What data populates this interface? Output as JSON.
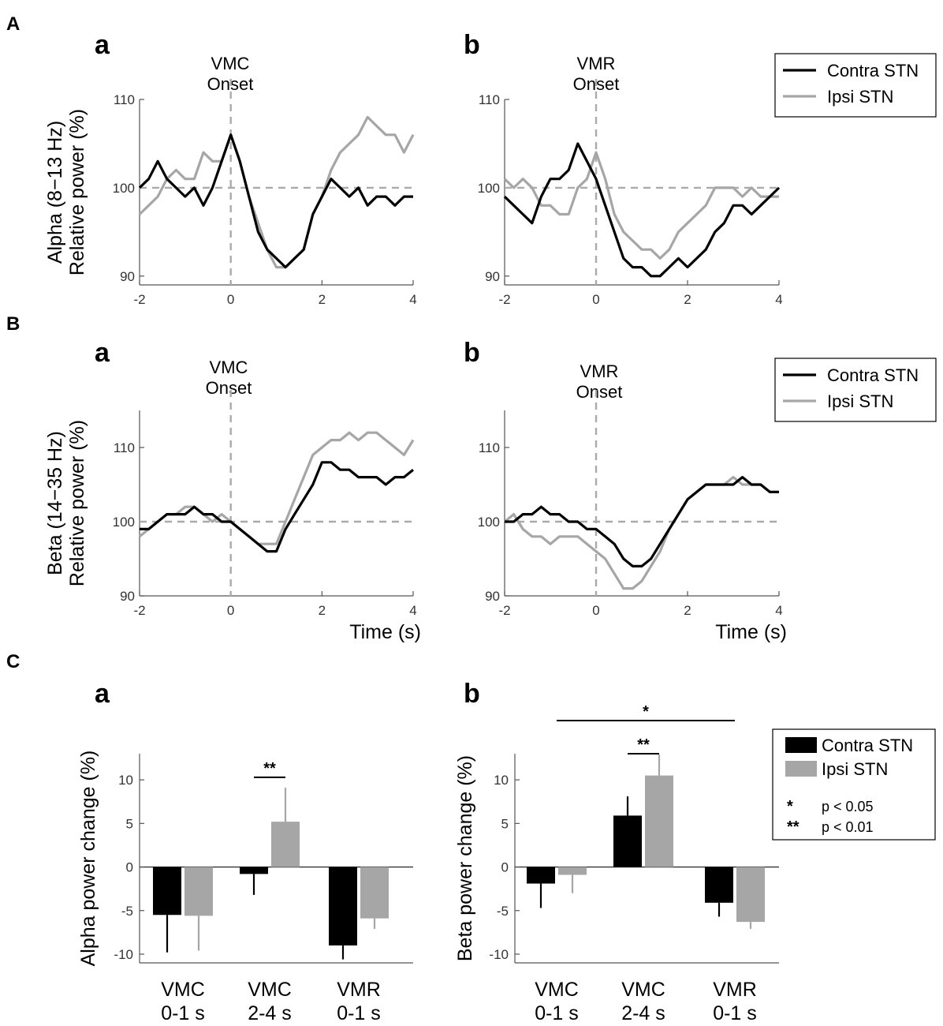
{
  "sections": [
    "A",
    "B",
    "C"
  ],
  "chart_data": [
    {
      "type": "line",
      "id": "A_a",
      "panel_label": "a",
      "annotation": [
        "VMC",
        "Onset"
      ],
      "ylabel": [
        "Alpha (8−13 Hz)",
        "Relative power (%)"
      ],
      "xlabel": "",
      "xlim": [
        -2,
        4
      ],
      "ylim": [
        89,
        110
      ],
      "xticks": [
        -2,
        0,
        2,
        4
      ],
      "yticks": [
        90,
        100,
        110
      ],
      "baseline_y": 100,
      "onset_x": 0,
      "series": [
        {
          "name": "Contra STN",
          "color": "#000000",
          "x": [
            -2,
            -1.8,
            -1.6,
            -1.4,
            -1.2,
            -1,
            -0.8,
            -0.6,
            -0.4,
            -0.2,
            0,
            0.2,
            0.4,
            0.6,
            0.8,
            1,
            1.2,
            1.4,
            1.6,
            1.8,
            2,
            2.2,
            2.4,
            2.6,
            2.8,
            3,
            3.2,
            3.4,
            3.6,
            3.8,
            4
          ],
          "y": [
            100,
            101,
            103,
            101,
            100,
            99,
            100,
            98,
            100,
            103,
            106,
            103,
            99,
            95,
            93,
            92,
            91,
            92,
            93,
            97,
            99,
            101,
            100,
            99,
            100,
            98,
            99,
            99,
            98,
            99,
            99
          ]
        },
        {
          "name": "Ipsi STN",
          "color": "#a6a6a6",
          "x": [
            -2,
            -1.8,
            -1.6,
            -1.4,
            -1.2,
            -1,
            -0.8,
            -0.6,
            -0.4,
            -0.2,
            0,
            0.2,
            0.4,
            0.6,
            0.8,
            1,
            1.2,
            1.4,
            1.6,
            1.8,
            2,
            2.2,
            2.4,
            2.6,
            2.8,
            3,
            3.2,
            3.4,
            3.6,
            3.8,
            4
          ],
          "y": [
            97,
            98,
            99,
            101,
            102,
            101,
            101,
            104,
            103,
            103,
            106,
            103,
            99,
            96,
            93,
            91,
            91,
            92,
            93,
            97,
            99,
            102,
            104,
            105,
            106,
            108,
            107,
            106,
            106,
            104,
            106
          ]
        }
      ]
    },
    {
      "type": "line",
      "id": "A_b",
      "panel_label": "b",
      "annotation": [
        "VMR",
        "Onset"
      ],
      "ylabel": [],
      "xlabel": "",
      "xlim": [
        -2,
        4
      ],
      "ylim": [
        89,
        110
      ],
      "xticks": [
        -2,
        0,
        2,
        4
      ],
      "yticks": [
        90,
        100,
        110
      ],
      "baseline_y": 100,
      "onset_x": 0,
      "series": [
        {
          "name": "Contra STN",
          "color": "#000000",
          "x": [
            -2,
            -1.8,
            -1.6,
            -1.4,
            -1.2,
            -1,
            -0.8,
            -0.6,
            -0.4,
            -0.2,
            0,
            0.2,
            0.4,
            0.6,
            0.8,
            1,
            1.2,
            1.4,
            1.6,
            1.8,
            2,
            2.2,
            2.4,
            2.6,
            2.8,
            3,
            3.2,
            3.4,
            3.6,
            3.8,
            4
          ],
          "y": [
            99,
            98,
            97,
            96,
            99,
            101,
            101,
            102,
            105,
            103,
            101,
            98,
            95,
            92,
            91,
            91,
            90,
            90,
            91,
            92,
            91,
            92,
            93,
            95,
            96,
            98,
            98,
            97,
            98,
            99,
            100
          ]
        },
        {
          "name": "Ipsi STN",
          "color": "#a6a6a6",
          "x": [
            -2,
            -1.8,
            -1.6,
            -1.4,
            -1.2,
            -1,
            -0.8,
            -0.6,
            -0.4,
            -0.2,
            0,
            0.2,
            0.4,
            0.6,
            0.8,
            1,
            1.2,
            1.4,
            1.6,
            1.8,
            2,
            2.2,
            2.4,
            2.6,
            2.8,
            3,
            3.2,
            3.4,
            3.6,
            3.8,
            4
          ],
          "y": [
            101,
            100,
            101,
            100,
            98,
            98,
            97,
            97,
            100,
            101,
            104,
            101,
            97,
            95,
            94,
            93,
            93,
            92,
            93,
            95,
            96,
            97,
            98,
            100,
            100,
            100,
            99,
            100,
            99,
            99,
            99
          ]
        }
      ]
    },
    {
      "type": "line",
      "id": "B_a",
      "panel_label": "a",
      "annotation": [
        "VMC",
        "Onset"
      ],
      "ylabel": [
        "Beta (14−35 Hz)",
        "Relative power (%)"
      ],
      "xlabel": "Time (s)",
      "xlim": [
        -2,
        4
      ],
      "ylim": [
        90,
        115
      ],
      "xticks": [
        -2,
        0,
        2,
        4
      ],
      "yticks": [
        90,
        100,
        110
      ],
      "baseline_y": 100,
      "onset_x": 0,
      "series": [
        {
          "name": "Contra STN",
          "color": "#000000",
          "x": [
            -2,
            -1.8,
            -1.6,
            -1.4,
            -1.2,
            -1,
            -0.8,
            -0.6,
            -0.4,
            -0.2,
            0,
            0.2,
            0.4,
            0.6,
            0.8,
            1,
            1.2,
            1.4,
            1.6,
            1.8,
            2,
            2.2,
            2.4,
            2.6,
            2.8,
            3,
            3.2,
            3.4,
            3.6,
            3.8,
            4
          ],
          "y": [
            99,
            99,
            100,
            101,
            101,
            101,
            102,
            101,
            101,
            100,
            100,
            99,
            98,
            97,
            96,
            96,
            99,
            101,
            103,
            105,
            108,
            108,
            107,
            107,
            106,
            106,
            106,
            105,
            106,
            106,
            107
          ]
        },
        {
          "name": "Ipsi STN",
          "color": "#a6a6a6",
          "x": [
            -2,
            -1.8,
            -1.6,
            -1.4,
            -1.2,
            -1,
            -0.8,
            -0.6,
            -0.4,
            -0.2,
            0,
            0.2,
            0.4,
            0.6,
            0.8,
            1,
            1.2,
            1.4,
            1.6,
            1.8,
            2,
            2.2,
            2.4,
            2.6,
            2.8,
            3,
            3.2,
            3.4,
            3.6,
            3.8,
            4
          ],
          "y": [
            98,
            99,
            100,
            101,
            101,
            102,
            102,
            101,
            100,
            101,
            100,
            99,
            98,
            97,
            97,
            97,
            100,
            103,
            106,
            109,
            110,
            111,
            111,
            112,
            111,
            112,
            112,
            111,
            110,
            109,
            111
          ]
        }
      ]
    },
    {
      "type": "line",
      "id": "B_b",
      "panel_label": "b",
      "annotation": [
        "VMR",
        "Onset"
      ],
      "ylabel": [],
      "xlabel": "Time (s)",
      "xlim": [
        -2,
        4
      ],
      "ylim": [
        90,
        115
      ],
      "xticks": [
        -2,
        0,
        2,
        4
      ],
      "yticks": [
        90,
        100,
        110
      ],
      "baseline_y": 100,
      "onset_x": 0,
      "series": [
        {
          "name": "Contra STN",
          "color": "#000000",
          "x": [
            -2,
            -1.8,
            -1.6,
            -1.4,
            -1.2,
            -1,
            -0.8,
            -0.6,
            -0.4,
            -0.2,
            0,
            0.2,
            0.4,
            0.6,
            0.8,
            1,
            1.2,
            1.4,
            1.6,
            1.8,
            2,
            2.2,
            2.4,
            2.6,
            2.8,
            3,
            3.2,
            3.4,
            3.6,
            3.8,
            4
          ],
          "y": [
            100,
            100,
            101,
            101,
            102,
            101,
            101,
            100,
            100,
            99,
            99,
            98,
            97,
            95,
            94,
            94,
            95,
            97,
            99,
            101,
            103,
            104,
            105,
            105,
            105,
            105,
            106,
            105,
            105,
            104,
            104
          ]
        },
        {
          "name": "Ipsi STN",
          "color": "#a6a6a6",
          "x": [
            -2,
            -1.8,
            -1.6,
            -1.4,
            -1.2,
            -1,
            -0.8,
            -0.6,
            -0.4,
            -0.2,
            0,
            0.2,
            0.4,
            0.6,
            0.8,
            1,
            1.2,
            1.4,
            1.6,
            1.8,
            2,
            2.2,
            2.4,
            2.6,
            2.8,
            3,
            3.2,
            3.4,
            3.6,
            3.8,
            4
          ],
          "y": [
            100,
            101,
            99,
            98,
            98,
            97,
            98,
            98,
            98,
            97,
            96,
            95,
            93,
            91,
            91,
            92,
            94,
            96,
            99,
            101,
            103,
            104,
            105,
            105,
            105,
            106,
            105,
            105,
            105,
            104,
            104
          ]
        }
      ]
    },
    {
      "type": "bar",
      "id": "C_a",
      "panel_label": "a",
      "ylabel": "Alpha power change (%)",
      "categories": [
        [
          "VMC",
          "0-1 s"
        ],
        [
          "VMC",
          "2-4 s"
        ],
        [
          "VMR",
          "0-1 s"
        ]
      ],
      "ylim": [
        -11,
        13
      ],
      "yticks": [
        -10,
        -5,
        0,
        5,
        10
      ],
      "series": [
        {
          "name": "Contra STN",
          "color": "#000000",
          "values": [
            -5.5,
            -0.8,
            -9.0
          ],
          "errors": [
            4.3,
            2.4,
            1.6
          ]
        },
        {
          "name": "Ipsi STN",
          "color": "#a6a6a6",
          "values": [
            -5.6,
            5.2,
            -5.9
          ],
          "errors": [
            4.0,
            3.9,
            1.2
          ]
        }
      ],
      "significance": [
        {
          "label": "**",
          "between": "Contra STN vs Ipsi STN",
          "category": 1,
          "y": 10.3
        }
      ]
    },
    {
      "type": "bar",
      "id": "C_b",
      "panel_label": "b",
      "ylabel": "Beta power change (%)",
      "categories": [
        [
          "VMC",
          "0-1 s"
        ],
        [
          "VMC",
          "2-4 s"
        ],
        [
          "VMR",
          "0-1 s"
        ]
      ],
      "ylim": [
        -11,
        13
      ],
      "yticks": [
        -10,
        -5,
        0,
        5,
        10
      ],
      "series": [
        {
          "name": "Contra STN",
          "color": "#000000",
          "values": [
            -1.9,
            5.9,
            -4.1
          ],
          "errors": [
            2.8,
            2.2,
            1.6
          ]
        },
        {
          "name": "Ipsi STN",
          "color": "#a6a6a6",
          "values": [
            -0.9,
            10.5,
            -6.3
          ],
          "errors": [
            2.1,
            2.4,
            0.8
          ]
        }
      ],
      "significance": [
        {
          "label": "**",
          "between": "Contra STN vs Ipsi STN",
          "category": 1,
          "y": 13.0
        },
        {
          "label": "*",
          "between": "VMC 0-1 s vs VMR 0-1 s",
          "category_span": [
            0,
            2
          ],
          "y": 16.8
        }
      ]
    }
  ],
  "legends": {
    "line": [
      {
        "label": "Contra STN",
        "color": "#000000"
      },
      {
        "label": "Ipsi STN",
        "color": "#a6a6a6"
      }
    ],
    "bar": [
      {
        "label": "Contra STN",
        "color": "#000000"
      },
      {
        "label": "Ipsi STN",
        "color": "#a6a6a6"
      }
    ],
    "significance_key": [
      {
        "symbol": "*",
        "text": "p < 0.05"
      },
      {
        "symbol": "**",
        "text": "p < 0.01"
      }
    ]
  }
}
